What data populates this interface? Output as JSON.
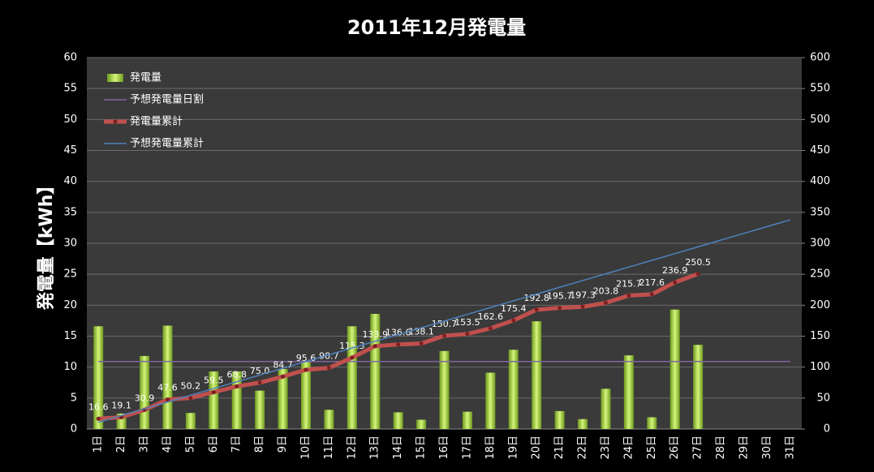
{
  "chart_data": {
    "type": "combo",
    "title": "2011年12月発電量",
    "y_label": "発電量【kWh】",
    "categories": [
      "1日",
      "2日",
      "3日",
      "4日",
      "5日",
      "6日",
      "7日",
      "8日",
      "9日",
      "10日",
      "11日",
      "12日",
      "13日",
      "14日",
      "15日",
      "16日",
      "17日",
      "18日",
      "19日",
      "20日",
      "21日",
      "22日",
      "23日",
      "24日",
      "25日",
      "26日",
      "27日",
      "28日",
      "29日",
      "30日",
      "31日"
    ],
    "ylim": [
      0,
      60
    ],
    "yticks": [
      0,
      5,
      10,
      15,
      20,
      25,
      30,
      35,
      40,
      45,
      50,
      55,
      60
    ],
    "y2lim": [
      0,
      600
    ],
    "y2ticks": [
      0,
      50,
      100,
      150,
      200,
      250,
      300,
      350,
      400,
      450,
      500,
      550,
      600
    ],
    "grid": true,
    "legend": "upper-left",
    "series": [
      {
        "name": "発電量",
        "type": "bar",
        "axis": "y",
        "color": "#9acd32",
        "values": [
          16.6,
          2.5,
          11.8,
          16.7,
          2.6,
          9.3,
          9.3,
          6.2,
          9.7,
          10.9,
          3.1,
          16.6,
          18.6,
          2.7,
          1.5,
          12.6,
          2.8,
          9.1,
          12.8,
          17.4,
          2.9,
          1.6,
          6.5,
          11.9,
          1.9,
          19.3,
          13.6,
          null,
          null,
          null,
          null
        ]
      },
      {
        "name": "予想発電量日割",
        "type": "line",
        "axis": "y",
        "color": "#8064a2",
        "values": [
          10.9,
          10.9,
          10.9,
          10.9,
          10.9,
          10.9,
          10.9,
          10.9,
          10.9,
          10.9,
          10.9,
          10.9,
          10.9,
          10.9,
          10.9,
          10.9,
          10.9,
          10.9,
          10.9,
          10.9,
          10.9,
          10.9,
          10.9,
          10.9,
          10.9,
          10.9,
          10.9,
          10.9,
          10.9,
          10.9,
          10.9
        ]
      },
      {
        "name": "発電量累計",
        "type": "line",
        "axis": "y2",
        "color": "#c0504d",
        "markers": true,
        "values": [
          16.6,
          19.1,
          30.9,
          47.6,
          50.2,
          59.5,
          68.8,
          75.0,
          84.7,
          95.6,
          98.7,
          115.3,
          133.9,
          136.6,
          138.1,
          150.7,
          153.5,
          162.6,
          175.4,
          192.8,
          195.7,
          197.3,
          203.8,
          215.7,
          217.6,
          236.9,
          250.5,
          null,
          null,
          null,
          null
        ],
        "value_labels": [
          "16.6",
          "19.1",
          "30.9",
          "47.6",
          "50.2",
          "59.5",
          "68.8",
          "75.0",
          "84.7",
          "95.6",
          "98.7",
          "115.3",
          "133.9",
          "136.6",
          "138.1",
          "150.7",
          "153.5",
          "162.6",
          "175.4",
          "192.8",
          "195.7",
          "197.3",
          "203.8",
          "215.7",
          "217.6",
          "236.9",
          "250.5",
          null,
          null,
          null,
          null
        ]
      },
      {
        "name": "予想発電量累計",
        "type": "line",
        "axis": "y2",
        "color": "#4f81bd",
        "values": [
          10.9,
          21.8,
          32.7,
          43.6,
          54.5,
          65.4,
          76.3,
          87.2,
          98.1,
          109,
          119.9,
          130.8,
          141.7,
          152.6,
          163.5,
          174.4,
          185.3,
          196.2,
          207.1,
          218,
          228.9,
          239.8,
          250.7,
          261.6,
          272.5,
          283.4,
          294.3,
          305.2,
          316.1,
          327,
          337.9
        ]
      }
    ]
  }
}
